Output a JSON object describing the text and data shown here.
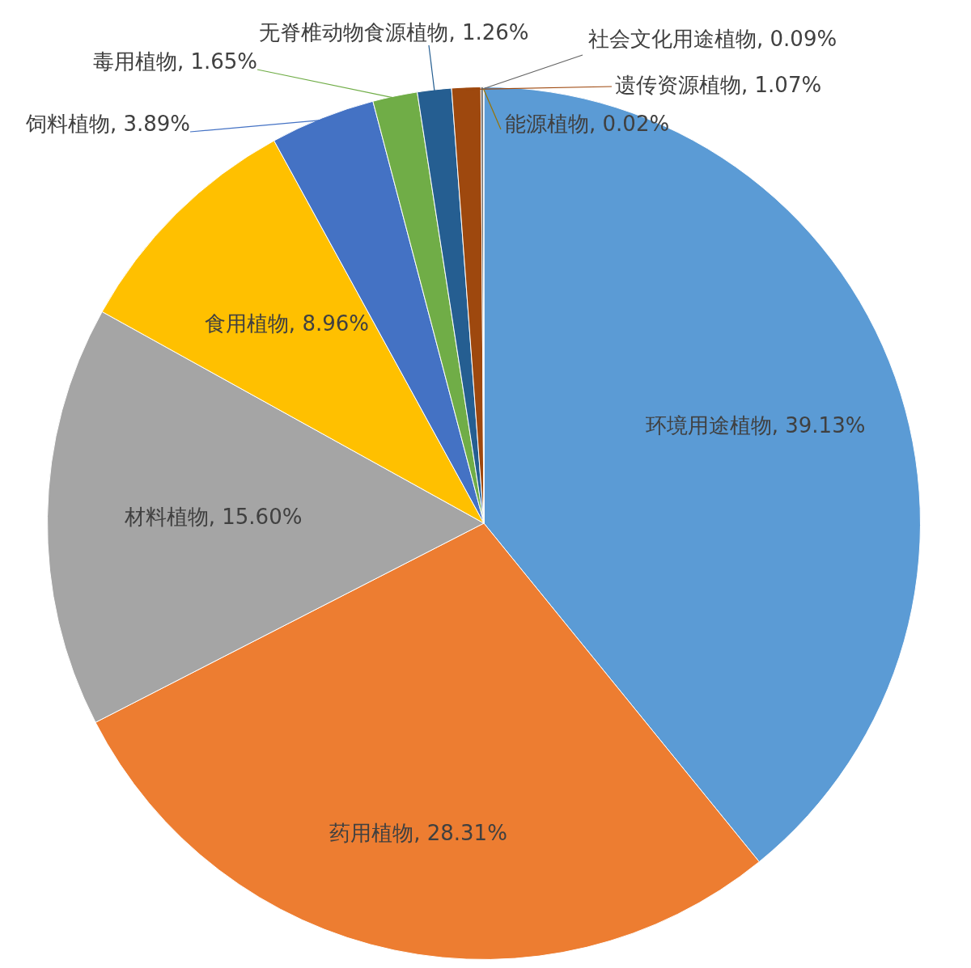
{
  "chart_data": {
    "type": "pie",
    "categories": [
      "环境用途植物",
      "药用植物",
      "材料植物",
      "食用植物",
      "饲料植物",
      "毒用植物",
      "无脊椎动物食源植物",
      "遗传资源植物",
      "社会文化用途植物",
      "能源植物"
    ],
    "values": [
      39.13,
      28.31,
      15.6,
      8.96,
      3.89,
      1.65,
      1.26,
      1.07,
      0.09,
      0.02
    ],
    "value_labels": [
      "39.13%",
      "28.31%",
      "15.60%",
      "8.96%",
      "3.89%",
      "1.65%",
      "1.26%",
      "1.07%",
      "0.09%",
      "0.02%"
    ],
    "colors": [
      "#5b9bd5",
      "#ed7d31",
      "#a5a5a5",
      "#ffc000",
      "#4472c4",
      "#70ad47",
      "#255e91",
      "#9e480e",
      "#636363",
      "#997300"
    ]
  }
}
